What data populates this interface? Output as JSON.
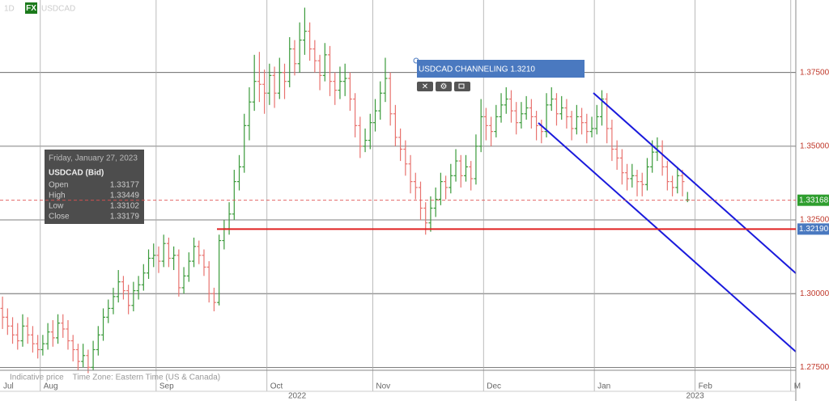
{
  "chart_data": {
    "type": "ohlc",
    "interval": "1D",
    "badge": "FX",
    "symbol": "USDCAD",
    "footer": "Indicative price    Time Zone: Eastern Time (US & Canada)",
    "years": [
      "2022",
      "2023"
    ],
    "annotation": "USDCAD CHANNELING 1.3210",
    "tooltip": {
      "date": "Friday, January 27, 2023",
      "title": "USDCAD (Bid)",
      "rows": [
        [
          "Open",
          "1.33177"
        ],
        [
          "High",
          "1.33449"
        ],
        [
          "Low",
          "1.33102"
        ],
        [
          "Close",
          "1.33179"
        ]
      ]
    },
    "last_price": {
      "value": 1.33168,
      "label": "1.33168"
    },
    "level": {
      "value": 1.3219,
      "label": "1.32190"
    },
    "up_color": "#3a9a3a",
    "down_color": "#e8736f",
    "ylim": [
      1.274,
      1.3996
    ],
    "yticks": [
      {
        "value": 1.275,
        "label": "1.27500"
      },
      {
        "value": 1.3,
        "label": "1.30000"
      },
      {
        "value": 1.325,
        "label": "1.32500"
      },
      {
        "value": 1.35,
        "label": "1.35000"
      },
      {
        "value": 1.375,
        "label": "1.37500"
      }
    ],
    "categories": [
      "Jul",
      null,
      null,
      null,
      null,
      null,
      null,
      null,
      "Aug",
      null,
      null,
      null,
      null,
      null,
      null,
      null,
      null,
      null,
      null,
      null,
      null,
      null,
      null,
      null,
      null,
      null,
      null,
      null,
      null,
      null,
      null,
      "Sep",
      null,
      null,
      null,
      null,
      null,
      null,
      null,
      null,
      null,
      null,
      null,
      null,
      null,
      null,
      null,
      null,
      null,
      null,
      null,
      null,
      null,
      "Oct",
      null,
      null,
      null,
      null,
      null,
      null,
      null,
      null,
      null,
      null,
      null,
      null,
      null,
      null,
      null,
      null,
      null,
      null,
      null,
      null,
      "Nov",
      null,
      null,
      null,
      null,
      null,
      null,
      null,
      null,
      null,
      null,
      null,
      null,
      null,
      null,
      null,
      null,
      null,
      null,
      null,
      null,
      null,
      "Dec",
      null,
      null,
      null,
      null,
      null,
      null,
      null,
      null,
      null,
      null,
      null,
      null,
      null,
      null,
      null,
      null,
      null,
      null,
      null,
      null,
      null,
      "Jan",
      null,
      null,
      null,
      null,
      null,
      null,
      null,
      null,
      null,
      null,
      null,
      null,
      null,
      null,
      null,
      null,
      null,
      null,
      null,
      "Feb",
      null,
      null,
      null,
      null,
      null,
      null,
      null,
      null,
      null,
      null,
      null,
      null,
      null,
      null,
      null,
      null,
      null,
      null,
      "M"
    ],
    "ohlc": [
      [
        1.295,
        1.299,
        1.288,
        1.292
      ],
      [
        1.292,
        1.295,
        1.286,
        1.289
      ],
      [
        1.289,
        1.292,
        1.283,
        1.286
      ],
      [
        1.286,
        1.29,
        1.281,
        1.284
      ],
      [
        1.284,
        1.293,
        1.282,
        1.289
      ],
      [
        1.289,
        1.292,
        1.283,
        1.286
      ],
      [
        1.286,
        1.289,
        1.28,
        1.283
      ],
      [
        1.283,
        1.286,
        1.278,
        1.281
      ],
      [
        1.281,
        1.286,
        1.279,
        1.283
      ],
      [
        1.283,
        1.29,
        1.281,
        1.287
      ],
      [
        1.287,
        1.291,
        1.282,
        1.285
      ],
      [
        1.285,
        1.293,
        1.283,
        1.29
      ],
      [
        1.29,
        1.293,
        1.285,
        1.288
      ],
      [
        1.288,
        1.291,
        1.281,
        1.284
      ],
      [
        1.284,
        1.286,
        1.277,
        1.281
      ],
      [
        1.281,
        1.283,
        1.274,
        1.277
      ],
      [
        1.277,
        1.283,
        1.275,
        1.279
      ],
      [
        1.279,
        1.281,
        1.273,
        1.275
      ],
      [
        1.275,
        1.284,
        1.274,
        1.281
      ],
      [
        1.281,
        1.289,
        1.279,
        1.286
      ],
      [
        1.286,
        1.295,
        1.284,
        1.292
      ],
      [
        1.292,
        1.298,
        1.29,
        1.295
      ],
      [
        1.295,
        1.302,
        1.293,
        1.299
      ],
      [
        1.299,
        1.308,
        1.297,
        1.304
      ],
      [
        1.304,
        1.306,
        1.298,
        1.301
      ],
      [
        1.301,
        1.303,
        1.293,
        1.296
      ],
      [
        1.296,
        1.304,
        1.294,
        1.301
      ],
      [
        1.301,
        1.306,
        1.298,
        1.303
      ],
      [
        1.303,
        1.31,
        1.301,
        1.307
      ],
      [
        1.307,
        1.315,
        1.305,
        1.312
      ],
      [
        1.312,
        1.317,
        1.309,
        1.313
      ],
      [
        1.313,
        1.316,
        1.307,
        1.311
      ],
      [
        1.311,
        1.32,
        1.309,
        1.317
      ],
      [
        1.317,
        1.319,
        1.309,
        1.312
      ],
      [
        1.312,
        1.316,
        1.308,
        1.313
      ],
      [
        1.313,
        1.315,
        1.299,
        1.302
      ],
      [
        1.302,
        1.309,
        1.3,
        1.306
      ],
      [
        1.306,
        1.314,
        1.304,
        1.311
      ],
      [
        1.311,
        1.319,
        1.309,
        1.316
      ],
      [
        1.316,
        1.318,
        1.31,
        1.313
      ],
      [
        1.313,
        1.315,
        1.306,
        1.309
      ],
      [
        1.309,
        1.311,
        1.297,
        1.3
      ],
      [
        1.3,
        1.302,
        1.294,
        1.297
      ],
      [
        1.297,
        1.32,
        1.296,
        1.318
      ],
      [
        1.318,
        1.325,
        1.315,
        1.322
      ],
      [
        1.322,
        1.331,
        1.32,
        1.327
      ],
      [
        1.327,
        1.342,
        1.325,
        1.338
      ],
      [
        1.338,
        1.347,
        1.335,
        1.343
      ],
      [
        1.343,
        1.361,
        1.341,
        1.357
      ],
      [
        1.357,
        1.37,
        1.352,
        1.365
      ],
      [
        1.365,
        1.381,
        1.362,
        1.372
      ],
      [
        1.372,
        1.382,
        1.365,
        1.371
      ],
      [
        1.371,
        1.376,
        1.361,
        1.368
      ],
      [
        1.368,
        1.378,
        1.364,
        1.374
      ],
      [
        1.374,
        1.377,
        1.363,
        1.368
      ],
      [
        1.368,
        1.38,
        1.366,
        1.375
      ],
      [
        1.375,
        1.378,
        1.366,
        1.372
      ],
      [
        1.372,
        1.387,
        1.37,
        1.383
      ],
      [
        1.383,
        1.386,
        1.374,
        1.378
      ],
      [
        1.378,
        1.392,
        1.375,
        1.386
      ],
      [
        1.386,
        1.397,
        1.381,
        1.389
      ],
      [
        1.389,
        1.392,
        1.379,
        1.383
      ],
      [
        1.383,
        1.386,
        1.375,
        1.379
      ],
      [
        1.379,
        1.381,
        1.369,
        1.374
      ],
      [
        1.374,
        1.385,
        1.372,
        1.381
      ],
      [
        1.381,
        1.384,
        1.367,
        1.372
      ],
      [
        1.372,
        1.375,
        1.364,
        1.369
      ],
      [
        1.369,
        1.377,
        1.366,
        1.372
      ],
      [
        1.372,
        1.378,
        1.367,
        1.373
      ],
      [
        1.373,
        1.375,
        1.362,
        1.366
      ],
      [
        1.366,
        1.368,
        1.353,
        1.357
      ],
      [
        1.357,
        1.36,
        1.346,
        1.35
      ],
      [
        1.35,
        1.356,
        1.348,
        1.352
      ],
      [
        1.352,
        1.361,
        1.349,
        1.358
      ],
      [
        1.358,
        1.366,
        1.355,
        1.362
      ],
      [
        1.362,
        1.372,
        1.359,
        1.368
      ],
      [
        1.368,
        1.38,
        1.365,
        1.373
      ],
      [
        1.373,
        1.375,
        1.357,
        1.361
      ],
      [
        1.361,
        1.364,
        1.35,
        1.353
      ],
      [
        1.353,
        1.356,
        1.345,
        1.349
      ],
      [
        1.349,
        1.352,
        1.34,
        1.344
      ],
      [
        1.344,
        1.347,
        1.334,
        1.338
      ],
      [
        1.338,
        1.341,
        1.332,
        1.336
      ],
      [
        1.336,
        1.338,
        1.325,
        1.329
      ],
      [
        1.329,
        1.331,
        1.32,
        1.324
      ],
      [
        1.324,
        1.333,
        1.321,
        1.329
      ],
      [
        1.329,
        1.336,
        1.326,
        1.332
      ],
      [
        1.332,
        1.341,
        1.33,
        1.338
      ],
      [
        1.338,
        1.34,
        1.332,
        1.336
      ],
      [
        1.336,
        1.344,
        1.334,
        1.34
      ],
      [
        1.34,
        1.349,
        1.338,
        1.345
      ],
      [
        1.345,
        1.347,
        1.336,
        1.34
      ],
      [
        1.34,
        1.347,
        1.338,
        1.343
      ],
      [
        1.343,
        1.345,
        1.335,
        1.339
      ],
      [
        1.339,
        1.354,
        1.337,
        1.35
      ],
      [
        1.35,
        1.366,
        1.348,
        1.36
      ],
      [
        1.36,
        1.363,
        1.352,
        1.357
      ],
      [
        1.357,
        1.36,
        1.35,
        1.355
      ],
      [
        1.355,
        1.364,
        1.353,
        1.36
      ],
      [
        1.36,
        1.368,
        1.358,
        1.364
      ],
      [
        1.364,
        1.37,
        1.361,
        1.366
      ],
      [
        1.366,
        1.369,
        1.358,
        1.362
      ],
      [
        1.362,
        1.365,
        1.354,
        1.358
      ],
      [
        1.358,
        1.365,
        1.356,
        1.361
      ],
      [
        1.361,
        1.367,
        1.359,
        1.363
      ],
      [
        1.363,
        1.366,
        1.356,
        1.36
      ],
      [
        1.36,
        1.362,
        1.352,
        1.357
      ],
      [
        1.357,
        1.359,
        1.351,
        1.355
      ],
      [
        1.355,
        1.368,
        1.353,
        1.364
      ],
      [
        1.364,
        1.37,
        1.362,
        1.366
      ],
      [
        1.366,
        1.368,
        1.357,
        1.361
      ],
      [
        1.361,
        1.367,
        1.359,
        1.363
      ],
      [
        1.363,
        1.366,
        1.356,
        1.36
      ],
      [
        1.36,
        1.362,
        1.352,
        1.356
      ],
      [
        1.356,
        1.364,
        1.354,
        1.36
      ],
      [
        1.36,
        1.363,
        1.354,
        1.358
      ],
      [
        1.358,
        1.361,
        1.351,
        1.355
      ],
      [
        1.355,
        1.36,
        1.353,
        1.356
      ],
      [
        1.356,
        1.364,
        1.354,
        1.36
      ],
      [
        1.36,
        1.369,
        1.357,
        1.366
      ],
      [
        1.366,
        1.368,
        1.351,
        1.356
      ],
      [
        1.356,
        1.359,
        1.345,
        1.349
      ],
      [
        1.349,
        1.352,
        1.342,
        1.346
      ],
      [
        1.346,
        1.349,
        1.337,
        1.341
      ],
      [
        1.341,
        1.344,
        1.335,
        1.339
      ],
      [
        1.339,
        1.344,
        1.336,
        1.34
      ],
      [
        1.34,
        1.342,
        1.333,
        1.338
      ],
      [
        1.338,
        1.341,
        1.333,
        1.337
      ],
      [
        1.337,
        1.346,
        1.335,
        1.343
      ],
      [
        1.343,
        1.352,
        1.341,
        1.348
      ],
      [
        1.348,
        1.353,
        1.345,
        1.35
      ],
      [
        1.35,
        1.352,
        1.34,
        1.343
      ],
      [
        1.343,
        1.345,
        1.335,
        1.338
      ],
      [
        1.338,
        1.34,
        1.333,
        1.336
      ],
      [
        1.336,
        1.343,
        1.334,
        1.34
      ],
      [
        1.34,
        1.342,
        1.333,
        1.338
      ],
      [
        1.33177,
        1.33449,
        1.33102,
        1.33179
      ],
      null,
      null,
      null,
      null,
      null,
      null,
      null,
      null,
      null,
      null,
      null,
      null,
      null,
      null,
      null,
      null,
      null,
      null,
      null,
      null,
      null,
      null,
      null
    ]
  }
}
